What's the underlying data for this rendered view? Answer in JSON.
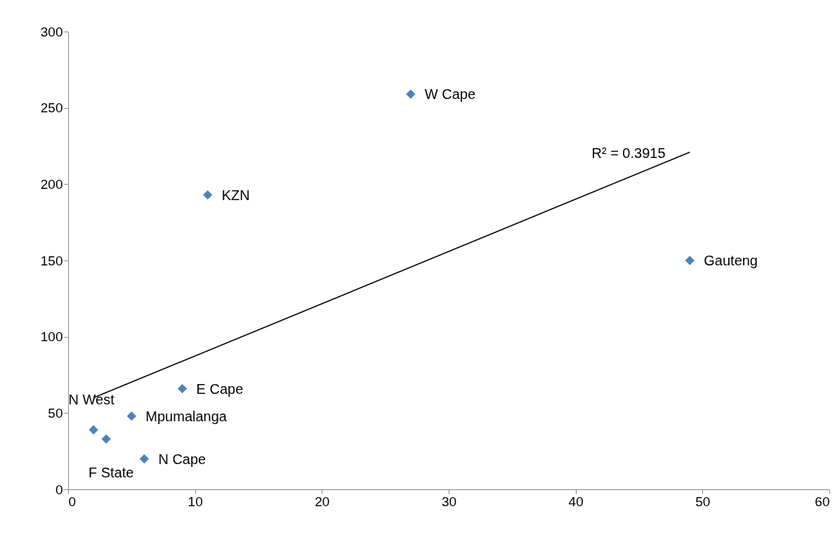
{
  "chart_data": {
    "type": "scatter",
    "grid": false,
    "xlim": [
      0,
      60
    ],
    "xticks": [
      0,
      10,
      20,
      30,
      40,
      50,
      60
    ],
    "ylim": [
      0,
      300
    ],
    "yticks": [
      0,
      50,
      100,
      150,
      200,
      250,
      300
    ],
    "series": [
      {
        "marker": "diamond",
        "color": "#4f81bd",
        "x": [
          27,
          11,
          49,
          9,
          5,
          2,
          3,
          6
        ],
        "values": [
          259,
          193,
          150,
          66,
          48,
          39,
          33,
          20
        ]
      },
      {
        "type": "line",
        "marker": "none",
        "color": "#000000",
        "x": [
          2,
          49
        ],
        "values": [
          60,
          221
        ]
      }
    ],
    "annotations": [
      {
        "text": "W Cape",
        "x": 27,
        "y": 259
      },
      {
        "text": "KZN",
        "x": 11,
        "y": 193
      },
      {
        "text": "Gauteng",
        "x": 49,
        "y": 150
      },
      {
        "text": "E Cape",
        "x": 9,
        "y": 66
      },
      {
        "text": "Mpumalanga",
        "x": 5,
        "y": 48
      },
      {
        "text": "N West",
        "x": 2,
        "y": 39
      },
      {
        "text": "F State",
        "x": 3,
        "y": 33
      },
      {
        "text": "N Cape",
        "x": 6,
        "y": 20
      },
      {
        "text": "R² = 0.3915",
        "x": 45,
        "y": 207
      }
    ]
  }
}
